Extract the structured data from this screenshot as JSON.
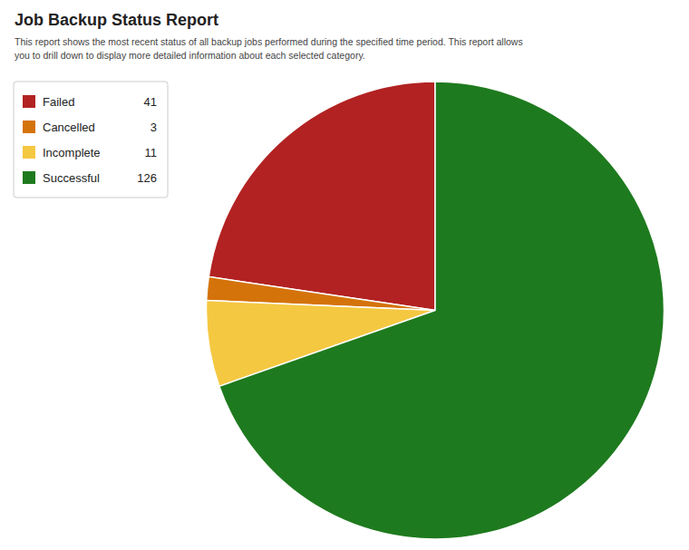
{
  "chart_data": {
    "type": "pie",
    "title": "Job Backup Status Report",
    "annotations": [
      "This report shows the most recent status of all backup jobs performed during the specified time period. This report allows",
      "you to drill down to display more detailed information about each selected category."
    ],
    "categories": [
      "Failed",
      "Cancelled",
      "Incomplete",
      "Successful"
    ],
    "values": [
      41,
      3,
      11,
      126
    ],
    "colors": [
      "#b22222",
      "#d4730a",
      "#f5c842",
      "#1e7a1e"
    ],
    "legend": "upper left"
  }
}
